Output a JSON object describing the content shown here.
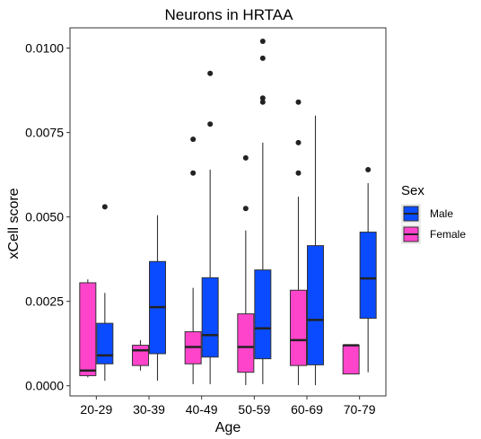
{
  "chart_data": {
    "type": "boxplot",
    "title": "Neurons in HRTAA",
    "xlabel": "Age",
    "ylabel": "xCell score",
    "ylim": [
      -0.0003,
      0.0106
    ],
    "yticks": [
      "0.0000",
      "0.0025",
      "0.0050",
      "0.0075",
      "0.0100"
    ],
    "ytick_values": [
      0,
      0.0025,
      0.005,
      0.0075,
      0.01
    ],
    "categories": [
      "20-29",
      "30-39",
      "40-49",
      "50-59",
      "60-69",
      "70-79"
    ],
    "grid": false,
    "legend": {
      "title": "Sex",
      "position": "right",
      "entries": [
        {
          "label": "Male",
          "color": "#0a4bff"
        },
        {
          "label": "Female",
          "color": "#ff44cc"
        }
      ]
    },
    "series": [
      {
        "name": "Female",
        "color": "#ff44cc",
        "boxes": [
          {
            "min": 0.00025,
            "q1": 0.0003,
            "median": 0.00045,
            "q3": 0.00305,
            "max": 0.00315,
            "outliers": []
          },
          {
            "min": 0.00045,
            "q1": 0.0006,
            "median": 0.00105,
            "q3": 0.0012,
            "max": 0.00135,
            "outliers": []
          },
          {
            "min": 5e-05,
            "q1": 0.00065,
            "median": 0.00115,
            "q3": 0.0016,
            "max": 0.0029,
            "outliers": [
              0.0063,
              0.0073
            ]
          },
          {
            "min": 2e-05,
            "q1": 0.0004,
            "median": 0.00115,
            "q3": 0.00213,
            "max": 0.0046,
            "outliers": [
              0.00525,
              0.00675
            ]
          },
          {
            "min": 2e-05,
            "q1": 0.0006,
            "median": 0.00135,
            "q3": 0.00283,
            "max": 0.0056,
            "outliers": [
              0.0063,
              0.0072,
              0.0084
            ]
          },
          {
            "min": 0.00035,
            "q1": 0.00035,
            "median": 0.0012,
            "q3": 0.0012,
            "max": 0.0012,
            "outliers": []
          }
        ]
      },
      {
        "name": "Male",
        "color": "#0a4bff",
        "boxes": [
          {
            "min": 0.00015,
            "q1": 0.00065,
            "median": 0.0009,
            "q3": 0.00185,
            "max": 0.00275,
            "outliers": [
              0.0053
            ]
          },
          {
            "min": 0.00015,
            "q1": 0.00095,
            "median": 0.00233,
            "q3": 0.00368,
            "max": 0.00505,
            "outliers": []
          },
          {
            "min": 5e-05,
            "q1": 0.00085,
            "median": 0.0015,
            "q3": 0.0032,
            "max": 0.0064,
            "outliers": [
              0.00775,
              0.00925
            ]
          },
          {
            "min": 5e-05,
            "q1": 0.0008,
            "median": 0.0017,
            "q3": 0.00343,
            "max": 0.0072,
            "outliers": [
              0.0084,
              0.00852,
              0.0097,
              0.0102
            ]
          },
          {
            "min": 2e-05,
            "q1": 0.00062,
            "median": 0.00195,
            "q3": 0.00415,
            "max": 0.008,
            "outliers": []
          },
          {
            "min": 0.0004,
            "q1": 0.002,
            "median": 0.00318,
            "q3": 0.00455,
            "max": 0.006,
            "outliers": [
              0.0064
            ]
          }
        ]
      }
    ]
  }
}
